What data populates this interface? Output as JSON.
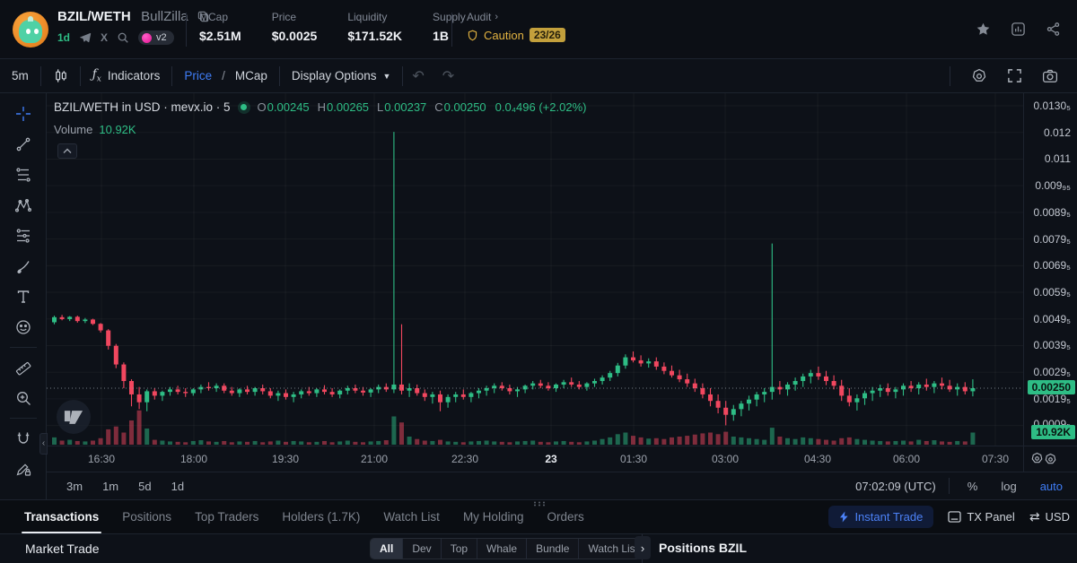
{
  "header": {
    "pair": "BZIL/WETH",
    "token_name": "BullZilla",
    "timeframe_badge": "1d",
    "version_badge": "v2",
    "stats": [
      {
        "label": "MCap",
        "value": "$2.51M"
      },
      {
        "label": "Price",
        "value": "$0.0025"
      },
      {
        "label": "Liquidity",
        "value": "$171.52K"
      },
      {
        "label": "Supply",
        "value": "1B"
      }
    ],
    "audit": {
      "label": "Audit",
      "status": "Caution",
      "score": "23/26"
    }
  },
  "toolbar": {
    "timeframe": "5m",
    "indicators_label": "Indicators",
    "price_label": "Price",
    "separator": "/",
    "mcap_label": "MCap",
    "display_options_label": "Display Options"
  },
  "legend": {
    "title": "BZIL/WETH in USD · mevx.io · 5",
    "o_label": "O",
    "o": "0.00245",
    "h_label": "H",
    "h": "0.00265",
    "l_label": "L",
    "l": "0.00237",
    "c_label": "C",
    "c": "0.00250",
    "change": "0.0₄496 (+2.02%)",
    "volume_label": "Volume",
    "volume": "10.92K"
  },
  "chart_data": {
    "type": "candlestick",
    "title": "BZIL/WETH in USD · mevx.io · 5",
    "interval": "5m",
    "scale": "log",
    "price_unit": "USD ×0.00001 (e.g. 250 = 0.00250)",
    "current_price": "0.00250",
    "current_volume": "10.92K",
    "y_axis": {
      "labels": [
        "0.0130₅",
        "0.012",
        "0.011",
        "0.009₉₅",
        "0.0089₅",
        "0.0079₅",
        "0.0069₅",
        "0.0059₅",
        "0.0049₅",
        "0.0039₅",
        "0.0029₅",
        "0.0019₅"
      ],
      "partial_label": "0.0009₅"
    },
    "x_axis": {
      "labels": [
        {
          "text": "16:30",
          "bold": false
        },
        {
          "text": "18:00",
          "bold": false
        },
        {
          "text": "19:30",
          "bold": false
        },
        {
          "text": "21:00",
          "bold": false
        },
        {
          "text": "22:30",
          "bold": false
        },
        {
          "text": "23",
          "bold": true
        },
        {
          "text": "01:30",
          "bold": false
        },
        {
          "text": "03:00",
          "bold": false
        },
        {
          "text": "04:30",
          "bold": false
        },
        {
          "text": "06:00",
          "bold": false
        },
        {
          "text": "07:30",
          "bold": false
        }
      ]
    },
    "candles_format": [
      "open",
      "high",
      "low",
      "close",
      "volume"
    ],
    "candles": [
      [
        385,
        402,
        380,
        398,
        18
      ],
      [
        398,
        404,
        390,
        393,
        10
      ],
      [
        393,
        401,
        388,
        399,
        12
      ],
      [
        399,
        402,
        384,
        388,
        9
      ],
      [
        388,
        396,
        383,
        392,
        8
      ],
      [
        392,
        394,
        378,
        381,
        10
      ],
      [
        381,
        383,
        360,
        365,
        16
      ],
      [
        365,
        368,
        322,
        330,
        38
      ],
      [
        330,
        334,
        285,
        292,
        45
      ],
      [
        292,
        296,
        250,
        262,
        30
      ],
      [
        262,
        265,
        222,
        240,
        60
      ],
      [
        240,
        252,
        218,
        228,
        85
      ],
      [
        228,
        248,
        215,
        245,
        40
      ],
      [
        245,
        250,
        232,
        238,
        12
      ],
      [
        238,
        246,
        230,
        244,
        10
      ],
      [
        244,
        252,
        238,
        248,
        8
      ],
      [
        248,
        254,
        240,
        244,
        7
      ],
      [
        244,
        250,
        236,
        242,
        6
      ],
      [
        242,
        250,
        238,
        248,
        9
      ],
      [
        248,
        256,
        242,
        252,
        11
      ],
      [
        252,
        260,
        246,
        250,
        8
      ],
      [
        250,
        258,
        244,
        254,
        7
      ],
      [
        254,
        258,
        242,
        246,
        9
      ],
      [
        246,
        252,
        238,
        242,
        6
      ],
      [
        242,
        250,
        236,
        248,
        8
      ],
      [
        248,
        254,
        240,
        244,
        7
      ],
      [
        244,
        252,
        238,
        250,
        9
      ],
      [
        250,
        256,
        240,
        245,
        6
      ],
      [
        245,
        250,
        234,
        238,
        8
      ],
      [
        238,
        246,
        230,
        242,
        10
      ],
      [
        242,
        248,
        232,
        236,
        7
      ],
      [
        236,
        244,
        228,
        240,
        9
      ],
      [
        240,
        248,
        234,
        245,
        8
      ],
      [
        245,
        252,
        238,
        242,
        6
      ],
      [
        242,
        250,
        236,
        248,
        7
      ],
      [
        248,
        255,
        240,
        244,
        9
      ],
      [
        244,
        250,
        236,
        240,
        6
      ],
      [
        240,
        248,
        234,
        246,
        8
      ],
      [
        246,
        254,
        240,
        250,
        10
      ],
      [
        250,
        256,
        242,
        246,
        7
      ],
      [
        246,
        252,
        238,
        243,
        6
      ],
      [
        243,
        250,
        236,
        248,
        8
      ],
      [
        248,
        256,
        242,
        252,
        9
      ],
      [
        252,
        258,
        244,
        248,
        11
      ],
      [
        248,
        1340,
        242,
        256,
        70
      ],
      [
        256,
        380,
        240,
        246,
        55
      ],
      [
        246,
        258,
        236,
        250,
        20
      ],
      [
        250,
        256,
        238,
        242,
        14
      ],
      [
        242,
        248,
        230,
        236,
        10
      ],
      [
        236,
        244,
        226,
        240,
        9
      ],
      [
        240,
        246,
        215,
        228,
        12
      ],
      [
        228,
        240,
        220,
        236,
        8
      ],
      [
        236,
        244,
        228,
        240,
        7
      ],
      [
        240,
        248,
        232,
        236,
        6
      ],
      [
        236,
        244,
        228,
        242,
        8
      ],
      [
        242,
        250,
        234,
        246,
        9
      ],
      [
        246,
        254,
        238,
        250,
        10
      ],
      [
        250,
        258,
        242,
        254,
        8
      ],
      [
        254,
        260,
        246,
        250,
        7
      ],
      [
        250,
        256,
        240,
        245,
        6
      ],
      [
        245,
        252,
        236,
        248,
        8
      ],
      [
        248,
        256,
        242,
        254,
        9
      ],
      [
        254,
        262,
        248,
        258,
        10
      ],
      [
        258,
        264,
        250,
        254,
        7
      ],
      [
        254,
        260,
        246,
        250,
        6
      ],
      [
        250,
        258,
        244,
        256,
        8
      ],
      [
        256,
        264,
        250,
        260,
        9
      ],
      [
        260,
        268,
        252,
        256,
        7
      ],
      [
        256,
        262,
        248,
        252,
        6
      ],
      [
        252,
        260,
        246,
        258,
        8
      ],
      [
        258,
        266,
        252,
        262,
        10
      ],
      [
        262,
        272,
        256,
        268,
        14
      ],
      [
        268,
        280,
        262,
        276,
        18
      ],
      [
        276,
        295,
        270,
        290,
        26
      ],
      [
        290,
        312,
        284,
        306,
        30
      ],
      [
        306,
        318,
        296,
        300,
        22
      ],
      [
        300,
        310,
        288,
        294,
        18
      ],
      [
        294,
        304,
        286,
        298,
        15
      ],
      [
        298,
        306,
        282,
        288,
        16
      ],
      [
        288,
        296,
        274,
        280,
        14
      ],
      [
        280,
        290,
        268,
        272,
        18
      ],
      [
        272,
        282,
        260,
        265,
        20
      ],
      [
        265,
        275,
        252,
        258,
        22
      ],
      [
        258,
        266,
        244,
        250,
        25
      ],
      [
        250,
        258,
        234,
        240,
        28
      ],
      [
        240,
        250,
        222,
        230,
        30
      ],
      [
        230,
        240,
        212,
        220,
        26
      ],
      [
        220,
        230,
        196,
        210,
        32
      ],
      [
        210,
        224,
        202,
        218,
        20
      ],
      [
        218,
        230,
        208,
        226,
        18
      ],
      [
        226,
        238,
        216,
        232,
        16
      ],
      [
        232,
        244,
        222,
        240,
        14
      ],
      [
        240,
        250,
        228,
        244,
        12
      ],
      [
        244,
        645,
        232,
        252,
        42
      ],
      [
        252,
        262,
        240,
        248,
        20
      ],
      [
        248,
        260,
        238,
        256,
        16
      ],
      [
        256,
        268,
        246,
        262,
        14
      ],
      [
        262,
        275,
        252,
        270,
        18
      ],
      [
        270,
        282,
        258,
        276,
        16
      ],
      [
        276,
        288,
        264,
        270,
        14
      ],
      [
        270,
        280,
        255,
        262,
        12
      ],
      [
        262,
        272,
        248,
        254,
        10
      ],
      [
        254,
        264,
        230,
        238,
        16
      ],
      [
        238,
        250,
        222,
        228,
        18
      ],
      [
        228,
        240,
        216,
        234,
        14
      ],
      [
        234,
        246,
        224,
        242,
        12
      ],
      [
        242,
        252,
        230,
        246,
        10
      ],
      [
        246,
        256,
        236,
        250,
        9
      ],
      [
        250,
        258,
        238,
        244,
        8
      ],
      [
        244,
        252,
        234,
        248,
        9
      ],
      [
        248,
        258,
        238,
        254,
        10
      ],
      [
        254,
        262,
        244,
        250,
        8
      ],
      [
        250,
        260,
        240,
        256,
        12
      ],
      [
        256,
        266,
        246,
        252,
        9
      ],
      [
        252,
        262,
        242,
        258,
        11
      ],
      [
        258,
        268,
        248,
        254,
        8
      ],
      [
        254,
        264,
        244,
        248,
        7
      ],
      [
        248,
        258,
        238,
        252,
        9
      ],
      [
        252,
        260,
        240,
        245,
        8
      ],
      [
        245,
        265,
        237,
        250,
        30
      ]
    ],
    "colors": {
      "up": "#2ebd85",
      "down": "#f1475f"
    }
  },
  "chart_footer": {
    "ranges": [
      "3m",
      "1m",
      "5d",
      "1d"
    ],
    "clock": "07:02:09 (UTC)",
    "percent": "%",
    "log": "log",
    "auto": "auto"
  },
  "tools": [
    "crosshair",
    "trend-line",
    "fib-lines",
    "xabcd-pattern",
    "forecast",
    "brush",
    "text",
    "emoji",
    "ruler",
    "zoom-in",
    "magnet",
    "draw-lock"
  ],
  "tabs": [
    {
      "label": "Transactions",
      "active": true
    },
    {
      "label": "Positions",
      "active": false
    },
    {
      "label": "Top Traders",
      "active": false
    },
    {
      "label": "Holders (1.7K)",
      "active": false
    },
    {
      "label": "Watch List",
      "active": false
    },
    {
      "label": "My Holding",
      "active": false
    },
    {
      "label": "Orders",
      "active": false
    }
  ],
  "row_actions": {
    "instant_trade": "Instant Trade",
    "tx_panel": "TX Panel",
    "currency": "USD"
  },
  "bottom": {
    "left_title": "Market Trade",
    "filters": [
      "All",
      "Dev",
      "Top",
      "Whale",
      "Bundle",
      "Watch List"
    ],
    "active_filter": "All",
    "right_title": "Positions BZIL"
  }
}
